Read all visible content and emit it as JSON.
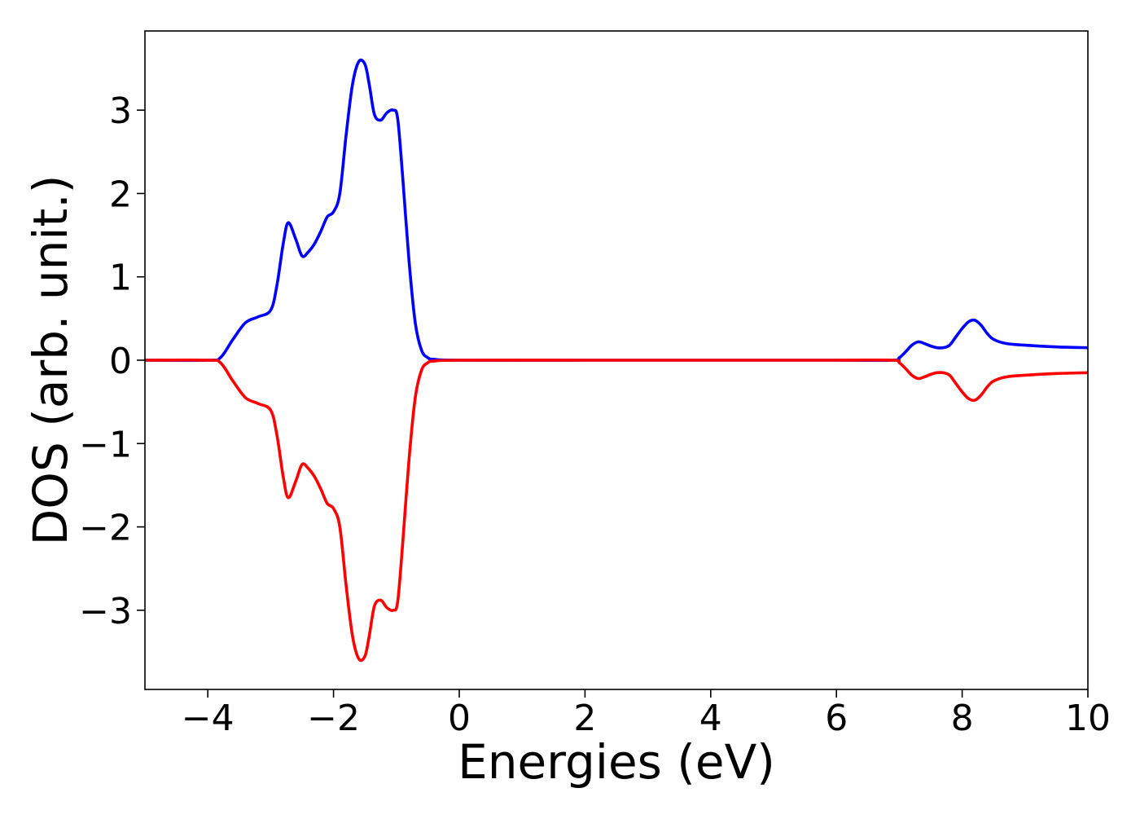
{
  "chart_data": {
    "type": "line",
    "title": "",
    "xlabel": "Energies (eV)",
    "ylabel": "DOS (arb. unit.)",
    "xlim": [
      -5,
      10
    ],
    "ylim": [
      -3.95,
      3.95
    ],
    "xticks": [
      -4,
      -2,
      0,
      2,
      4,
      6,
      8,
      10
    ],
    "xtick_labels": [
      "−4",
      "−2",
      "0",
      "2",
      "4",
      "6",
      "8",
      "10"
    ],
    "yticks": [
      -3,
      -2,
      -1,
      0,
      1,
      2,
      3
    ],
    "ytick_labels": [
      "−3",
      "−2",
      "−1",
      "0",
      "1",
      "2",
      "3"
    ],
    "grid": false,
    "series": [
      {
        "color": "#0000ff",
        "x": [
          -5.0,
          -4.0,
          -3.8,
          -3.6,
          -3.4,
          -3.2,
          -3.0,
          -2.9,
          -2.8,
          -2.72,
          -2.6,
          -2.5,
          -2.4,
          -2.3,
          -2.2,
          -2.1,
          -2.0,
          -1.9,
          -1.8,
          -1.7,
          -1.6,
          -1.5,
          -1.43,
          -1.35,
          -1.25,
          -1.15,
          -1.05,
          -0.98,
          -0.9,
          -0.8,
          -0.7,
          -0.6,
          -0.5,
          -0.4,
          0.0,
          2.0,
          4.0,
          6.0,
          6.9,
          7.0,
          7.1,
          7.2,
          7.3,
          7.4,
          7.5,
          7.6,
          7.7,
          7.8,
          7.9,
          8.0,
          8.1,
          8.2,
          8.3,
          8.4,
          8.5,
          8.7,
          9.0,
          9.5,
          10.0
        ],
        "y": [
          0.0,
          0.0,
          0.03,
          0.25,
          0.45,
          0.52,
          0.6,
          0.9,
          1.4,
          1.65,
          1.45,
          1.25,
          1.3,
          1.4,
          1.55,
          1.72,
          1.78,
          2.0,
          2.7,
          3.3,
          3.58,
          3.55,
          3.3,
          2.95,
          2.88,
          2.97,
          3.0,
          2.9,
          2.2,
          1.2,
          0.45,
          0.12,
          0.03,
          0.01,
          0.0,
          0.0,
          0.0,
          0.0,
          0.0,
          0.03,
          0.1,
          0.18,
          0.22,
          0.2,
          0.17,
          0.15,
          0.15,
          0.18,
          0.28,
          0.38,
          0.46,
          0.48,
          0.42,
          0.32,
          0.25,
          0.2,
          0.18,
          0.16,
          0.15
        ]
      },
      {
        "color": "#ff0000",
        "x": [
          -5.0,
          -4.0,
          -3.8,
          -3.6,
          -3.4,
          -3.2,
          -3.0,
          -2.9,
          -2.8,
          -2.72,
          -2.6,
          -2.5,
          -2.4,
          -2.3,
          -2.2,
          -2.1,
          -2.0,
          -1.9,
          -1.8,
          -1.7,
          -1.6,
          -1.5,
          -1.43,
          -1.35,
          -1.25,
          -1.15,
          -1.05,
          -0.98,
          -0.9,
          -0.8,
          -0.7,
          -0.6,
          -0.5,
          -0.4,
          0.0,
          2.0,
          4.0,
          6.0,
          6.9,
          7.0,
          7.1,
          7.2,
          7.3,
          7.4,
          7.5,
          7.6,
          7.7,
          7.8,
          7.9,
          8.0,
          8.1,
          8.2,
          8.3,
          8.4,
          8.5,
          8.7,
          9.0,
          9.5,
          10.0
        ],
        "y": [
          0.0,
          0.0,
          -0.03,
          -0.25,
          -0.45,
          -0.52,
          -0.6,
          -0.9,
          -1.4,
          -1.65,
          -1.45,
          -1.25,
          -1.3,
          -1.4,
          -1.55,
          -1.72,
          -1.78,
          -2.0,
          -2.7,
          -3.3,
          -3.58,
          -3.55,
          -3.3,
          -2.95,
          -2.88,
          -2.97,
          -3.0,
          -2.9,
          -2.2,
          -1.2,
          -0.45,
          -0.12,
          -0.03,
          -0.01,
          0.0,
          0.0,
          0.0,
          0.0,
          0.0,
          -0.03,
          -0.1,
          -0.18,
          -0.22,
          -0.2,
          -0.17,
          -0.15,
          -0.15,
          -0.18,
          -0.28,
          -0.38,
          -0.46,
          -0.48,
          -0.42,
          -0.32,
          -0.25,
          -0.2,
          -0.18,
          -0.16,
          -0.15
        ]
      }
    ]
  }
}
